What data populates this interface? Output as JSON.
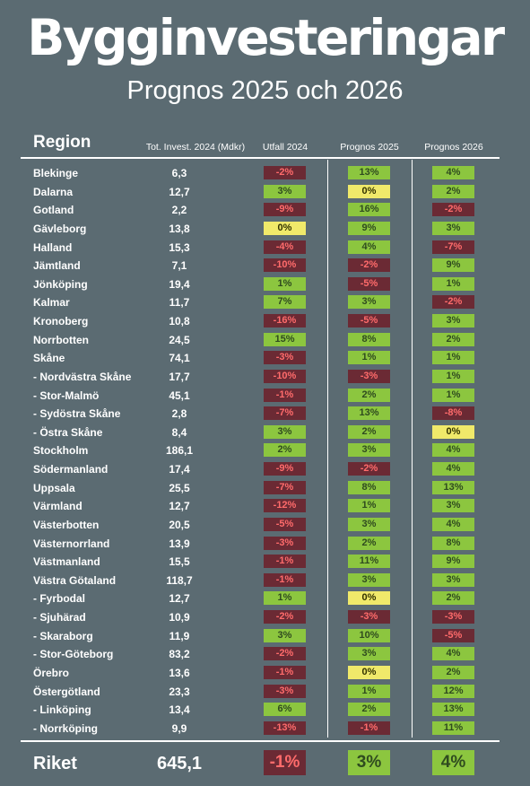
{
  "title": "Bygginvesteringar",
  "subtitle": "Prognos 2025 och 2026",
  "headers": {
    "region": "Region",
    "invest": "Tot. Invest. 2024 (Mdkr)",
    "utfall": "Utfall 2024",
    "prognos2025": "Prognos 2025",
    "prognos2026": "Prognos 2026"
  },
  "colors": {
    "positive": "#8cc63f",
    "negative": "#6b2a34",
    "zero": "#f0e96a",
    "background": "#5b6b72"
  },
  "rows": [
    {
      "region": "Blekinge",
      "invest": "6,3",
      "utfall": "-2%",
      "p2025": "13%",
      "p2026": "4%"
    },
    {
      "region": "Dalarna",
      "invest": "12,7",
      "utfall": "3%",
      "p2025": "0%",
      "p2026": "2%"
    },
    {
      "region": "Gotland",
      "invest": "2,2",
      "utfall": "-9%",
      "p2025": "16%",
      "p2026": "-2%"
    },
    {
      "region": "Gävleborg",
      "invest": "13,8",
      "utfall": "0%",
      "p2025": "9%",
      "p2026": "3%"
    },
    {
      "region": "Halland",
      "invest": "15,3",
      "utfall": "-4%",
      "p2025": "4%",
      "p2026": "-7%"
    },
    {
      "region": "Jämtland",
      "invest": "7,1",
      "utfall": "-10%",
      "p2025": "-2%",
      "p2026": "9%"
    },
    {
      "region": "Jönköping",
      "invest": "19,4",
      "utfall": "1%",
      "p2025": "-5%",
      "p2026": "1%"
    },
    {
      "region": "Kalmar",
      "invest": "11,7",
      "utfall": "7%",
      "p2025": "3%",
      "p2026": "-2%"
    },
    {
      "region": "Kronoberg",
      "invest": "10,8",
      "utfall": "-16%",
      "p2025": "-5%",
      "p2026": "3%"
    },
    {
      "region": "Norrbotten",
      "invest": "24,5",
      "utfall": "15%",
      "p2025": "8%",
      "p2026": "2%"
    },
    {
      "region": "Skåne",
      "invest": "74,1",
      "utfall": "-3%",
      "p2025": "1%",
      "p2026": "1%"
    },
    {
      "region": " - Nordvästra Skåne",
      "invest": "17,7",
      "utfall": "-10%",
      "p2025": "-3%",
      "p2026": "1%"
    },
    {
      "region": " - Stor-Malmö",
      "invest": "45,1",
      "utfall": "-1%",
      "p2025": "2%",
      "p2026": "1%"
    },
    {
      "region": " - Sydöstra Skåne",
      "invest": "2,8",
      "utfall": "-7%",
      "p2025": "13%",
      "p2026": "-8%"
    },
    {
      "region": " - Östra Skåne",
      "invest": "8,4",
      "utfall": "3%",
      "p2025": "2%",
      "p2026": "0%"
    },
    {
      "region": "Stockholm",
      "invest": "186,1",
      "utfall": "2%",
      "p2025": "3%",
      "p2026": "4%"
    },
    {
      "region": "Södermanland",
      "invest": "17,4",
      "utfall": "-9%",
      "p2025": "-2%",
      "p2026": "4%"
    },
    {
      "region": "Uppsala",
      "invest": "25,5",
      "utfall": "-7%",
      "p2025": "8%",
      "p2026": "13%"
    },
    {
      "region": "Värmland",
      "invest": "12,7",
      "utfall": "-12%",
      "p2025": "1%",
      "p2026": "3%"
    },
    {
      "region": "Västerbotten",
      "invest": "20,5",
      "utfall": "-5%",
      "p2025": "3%",
      "p2026": "4%"
    },
    {
      "region": "Västernorrland",
      "invest": "13,9",
      "utfall": "-3%",
      "p2025": "2%",
      "p2026": "8%"
    },
    {
      "region": "Västmanland",
      "invest": "15,5",
      "utfall": "-1%",
      "p2025": "11%",
      "p2026": "9%"
    },
    {
      "region": "Västra Götaland",
      "invest": "118,7",
      "utfall": "-1%",
      "p2025": "3%",
      "p2026": "3%"
    },
    {
      "region": "- Fyrbodal",
      "invest": "12,7",
      "utfall": "1%",
      "p2025": "0%",
      "p2026": "2%"
    },
    {
      "region": "- Sjuhärad",
      "invest": "10,9",
      "utfall": "-2%",
      "p2025": "-3%",
      "p2026": "-3%"
    },
    {
      "region": "- Skaraborg",
      "invest": "11,9",
      "utfall": "3%",
      "p2025": "10%",
      "p2026": "-5%"
    },
    {
      "region": "- Stor-Göteborg",
      "invest": "83,2",
      "utfall": "-2%",
      "p2025": "3%",
      "p2026": "4%"
    },
    {
      "region": "Örebro",
      "invest": "13,6",
      "utfall": "-1%",
      "p2025": "0%",
      "p2026": "2%"
    },
    {
      "region": "Östergötland",
      "invest": "23,3",
      "utfall": "-3%",
      "p2025": "1%",
      "p2026": "12%"
    },
    {
      "region": " - Linköping",
      "invest": "13,4",
      "utfall": "6%",
      "p2025": "2%",
      "p2026": "13%"
    },
    {
      "region": " - Norrköping",
      "invest": "9,9",
      "utfall": "-13%",
      "p2025": "-1%",
      "p2026": "11%"
    }
  ],
  "total": {
    "region": "Riket",
    "invest": "645,1",
    "utfall": "-1%",
    "p2025": "3%",
    "p2026": "4%"
  }
}
